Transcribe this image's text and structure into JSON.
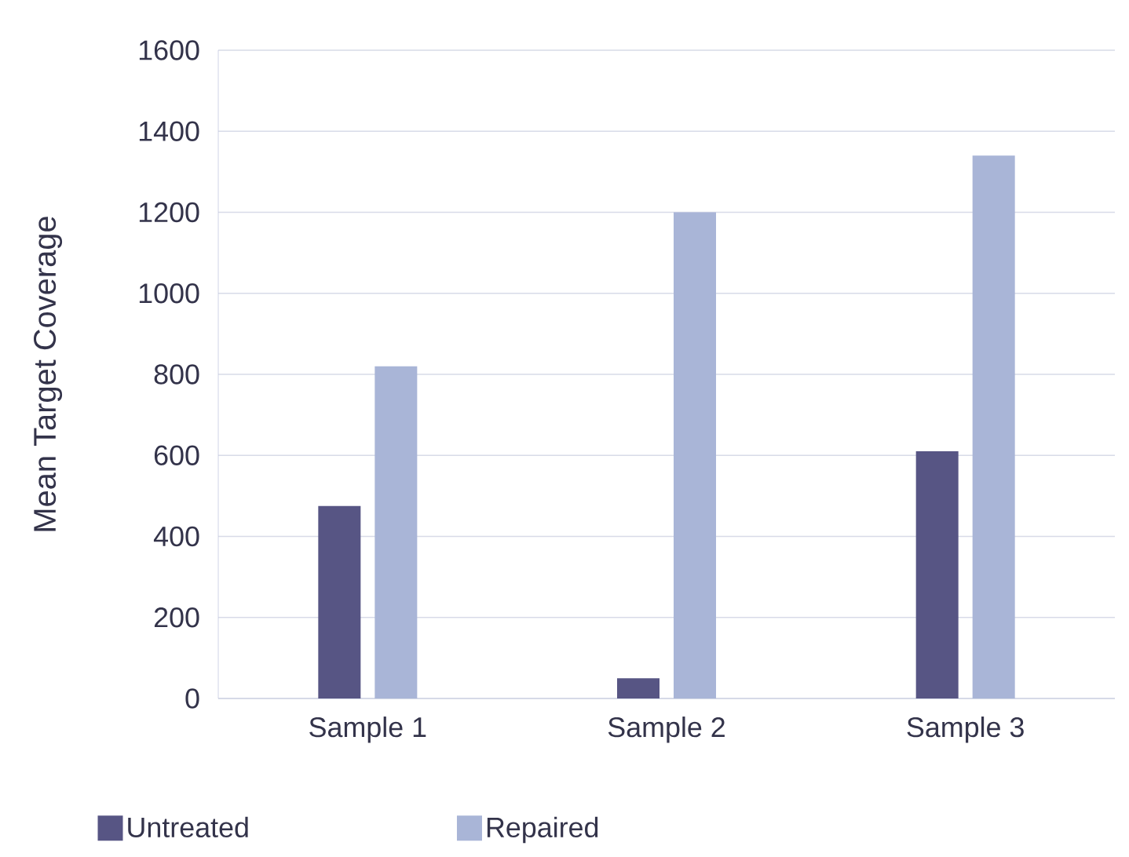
{
  "chart_data": {
    "type": "bar",
    "ylabel": "Mean Target Coverage",
    "categories": [
      "Sample 1",
      "Sample 2",
      "Sample 3"
    ],
    "series": [
      {
        "name": "Untreated",
        "color": "#575584",
        "values": [
          475,
          50,
          610
        ]
      },
      {
        "name": "Repaired",
        "color": "#a9b5d7",
        "values": [
          820,
          1200,
          1340
        ]
      }
    ],
    "ylim": [
      0,
      1600
    ],
    "yticks": [
      0,
      200,
      400,
      600,
      800,
      1000,
      1200,
      1400,
      1600
    ],
    "grid": "y",
    "legend": "bottom left"
  }
}
